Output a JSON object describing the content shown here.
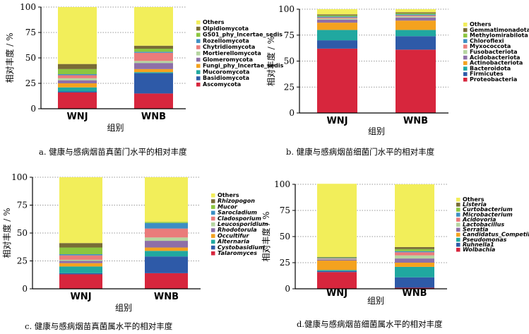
{
  "chart_data": [
    {
      "type": "bar",
      "stacked": true,
      "categories": [
        "WNJ",
        "WNB"
      ],
      "xlabel": "组别",
      "ylabel": "相对丰度 / %",
      "ylim": [
        0,
        100
      ],
      "yticks": [
        "0",
        "25",
        "50",
        "75",
        "100"
      ],
      "legend_italic": false,
      "caption": "a. 健康与感病烟苗真菌门水平的相对丰度",
      "series": [
        {
          "name": "Ascomycota",
          "color": "#d7263d",
          "values": [
            16,
            15
          ]
        },
        {
          "name": "Basidiomycota",
          "color": "#2e5aa8",
          "values": [
            1,
            20
          ]
        },
        {
          "name": "Mucoromycota",
          "color": "#20a8a0",
          "values": [
            4,
            1
          ]
        },
        {
          "name": "Fungi_phy_Incertae_sedis",
          "color": "#f4a21f",
          "values": [
            4,
            3
          ]
        },
        {
          "name": "Glomeromycota",
          "color": "#8e6fa8",
          "values": [
            3,
            6
          ]
        },
        {
          "name": "Mortierellomycota",
          "color": "#b5d5a0",
          "values": [
            2,
            2
          ]
        },
        {
          "name": "Chytridiomycota",
          "color": "#ea7b7b",
          "values": [
            3,
            8
          ]
        },
        {
          "name": "Rozellomycota",
          "color": "#3d8fc4",
          "values": [
            1,
            1
          ]
        },
        {
          "name": "GS01_phy_Incertae_sedis",
          "color": "#8cc63f",
          "values": [
            5,
            3
          ]
        },
        {
          "name": "Olpidiomycota",
          "color": "#786b36",
          "values": [
            5,
            3
          ]
        },
        {
          "name": "Others",
          "color": "#f2ee5a",
          "values": [
            56,
            38
          ]
        }
      ]
    },
    {
      "type": "bar",
      "stacked": true,
      "categories": [
        "WNJ",
        "WNB"
      ],
      "xlabel": "组别",
      "ylabel": "相对丰度 / %",
      "ylim": [
        0,
        100
      ],
      "yticks": [
        "0",
        "25",
        "50",
        "75",
        "100"
      ],
      "legend_italic": false,
      "caption": "b. 健康与感病烟苗细菌门水平的相对丰度",
      "series": [
        {
          "name": "Proteobacteria",
          "color": "#d7263d",
          "values": [
            62,
            61
          ]
        },
        {
          "name": "Firmicutes",
          "color": "#2e5aa8",
          "values": [
            8,
            13
          ]
        },
        {
          "name": "Bacteroidota",
          "color": "#20a8a0",
          "values": [
            10,
            6
          ]
        },
        {
          "name": "Actinobacteriota",
          "color": "#f4a21f",
          "values": [
            7,
            9
          ]
        },
        {
          "name": "Acidobacteriota",
          "color": "#8e6fa8",
          "values": [
            3,
            3
          ]
        },
        {
          "name": "Fusobacteriota",
          "color": "#b5d5a0",
          "values": [
            1,
            1
          ]
        },
        {
          "name": "Myxococcota",
          "color": "#ea7b7b",
          "values": [
            1,
            1
          ]
        },
        {
          "name": "Chloroflexi",
          "color": "#3d8fc4",
          "values": [
            1,
            1
          ]
        },
        {
          "name": "Methylomirabilota",
          "color": "#8cc63f",
          "values": [
            1,
            1
          ]
        },
        {
          "name": "Gemmatimonadota",
          "color": "#786b36",
          "values": [
            1,
            1
          ]
        },
        {
          "name": "Others",
          "color": "#f2ee5a",
          "values": [
            5,
            3
          ]
        }
      ]
    },
    {
      "type": "bar",
      "stacked": true,
      "categories": [
        "WNJ",
        "WNB"
      ],
      "xlabel": "组别",
      "ylabel": "相对丰度 / %",
      "ylim": [
        0,
        100
      ],
      "yticks": [
        "0",
        "25",
        "50",
        "75",
        "100"
      ],
      "legend_italic": true,
      "caption": "c. 健康与感病烟苗真菌属水平的相对丰度",
      "series": [
        {
          "name": "Talaromyces",
          "color": "#d7263d",
          "values": [
            13,
            14
          ]
        },
        {
          "name": "Cystobasidium",
          "color": "#2e5aa8",
          "values": [
            1,
            15
          ]
        },
        {
          "name": "Alternaria",
          "color": "#20a8a0",
          "values": [
            6,
            5
          ]
        },
        {
          "name": "Occultifur",
          "color": "#f4a21f",
          "values": [
            3,
            3
          ]
        },
        {
          "name": "Rhodotorula",
          "color": "#8e6fa8",
          "values": [
            2,
            6
          ]
        },
        {
          "name": "Leucosporidium",
          "color": "#b5d5a0",
          "values": [
            1,
            3
          ]
        },
        {
          "name": "Cladosporium",
          "color": "#ea7b7b",
          "values": [
            4,
            8
          ]
        },
        {
          "name": "Sarocladium",
          "color": "#3d8fc4",
          "values": [
            1,
            5
          ]
        },
        {
          "name": "Mucor",
          "color": "#8cc63f",
          "values": [
            6,
            1
          ]
        },
        {
          "name": "Rhizopogon",
          "color": "#786b36",
          "values": [
            4,
            0
          ]
        },
        {
          "name": "Others",
          "color": "#f2ee5a",
          "values": [
            59,
            40
          ]
        }
      ]
    },
    {
      "type": "bar",
      "stacked": true,
      "categories": [
        "WNJ",
        "WNB"
      ],
      "xlabel": "组别",
      "ylabel": "相对丰度 / %",
      "ylim": [
        0,
        100
      ],
      "yticks": [
        "0",
        "25",
        "50",
        "75",
        "100"
      ],
      "legend_italic": true,
      "caption": "d.健康与感病烟苗细菌属水平的相对丰度",
      "series": [
        {
          "name": "Wolbachia",
          "color": "#d7263d",
          "values": [
            16,
            1
          ]
        },
        {
          "name": "Ruhnella1",
          "color": "#2e5aa8",
          "values": [
            1,
            10
          ]
        },
        {
          "name": "Pseudomonas",
          "color": "#20a8a0",
          "values": [
            1,
            10
          ]
        },
        {
          "name": "Candidatus_Competibacter",
          "color": "#f4a21f",
          "values": [
            9,
            4
          ]
        },
        {
          "name": "Serratia",
          "color": "#8e6fa8",
          "values": [
            1,
            4
          ]
        },
        {
          "name": "Lactobacillus",
          "color": "#b5d5a0",
          "values": [
            0.5,
            3
          ]
        },
        {
          "name": "Acidovoria",
          "color": "#ea7b7b",
          "values": [
            0.5,
            3
          ]
        },
        {
          "name": "Microbacterium",
          "color": "#3d8fc4",
          "values": [
            0.5,
            1
          ]
        },
        {
          "name": "Curtobacterium",
          "color": "#8cc63f",
          "values": [
            0.5,
            2
          ]
        },
        {
          "name": "Listeria",
          "color": "#786b36",
          "values": [
            0.5,
            2
          ]
        },
        {
          "name": "Others",
          "color": "#f2ee5a",
          "values": [
            70,
            60
          ]
        }
      ]
    }
  ]
}
